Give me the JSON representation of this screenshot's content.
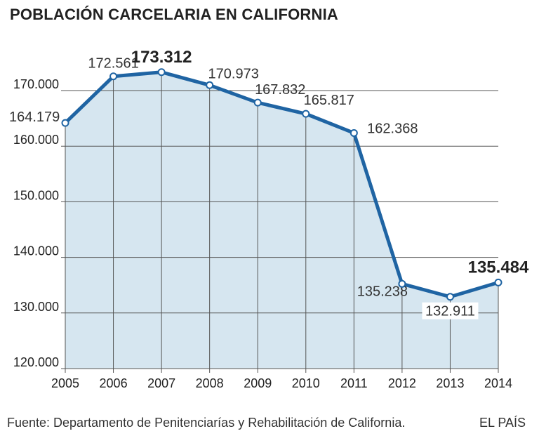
{
  "chart_data": {
    "type": "area",
    "title": "POBLACIÓN CARCELARIA EN CALIFORNIA",
    "xlabel": "",
    "ylabel": "",
    "categories": [
      "2005",
      "2006",
      "2007",
      "2008",
      "2009",
      "2010",
      "2011",
      "2012",
      "2013",
      "2014"
    ],
    "values": [
      164179,
      172561,
      173312,
      170973,
      167832,
      165817,
      162368,
      135238,
      132911,
      135484
    ],
    "data_labels": [
      "164.179",
      "172.561",
      "173.312",
      "170.973",
      "167.832",
      "165.817",
      "162.368",
      "135.238",
      "132.911",
      "135.484"
    ],
    "highlighted": [
      "2007",
      "2014"
    ],
    "ylim": [
      120000,
      170000
    ],
    "y_ticks": [
      120000,
      130000,
      140000,
      150000,
      160000,
      170000
    ],
    "y_tick_labels": [
      "120.000",
      "130.000",
      "140.000",
      "150.000",
      "160.000",
      "170.000"
    ],
    "grid": true,
    "colors": {
      "line": "#1f64a3",
      "fill": "#d6e6f0",
      "grid": "#555555"
    }
  },
  "source": "Fuente: Departamento de Penitenciarías y Rehabilitación de California.",
  "brand": "EL PAÍS"
}
